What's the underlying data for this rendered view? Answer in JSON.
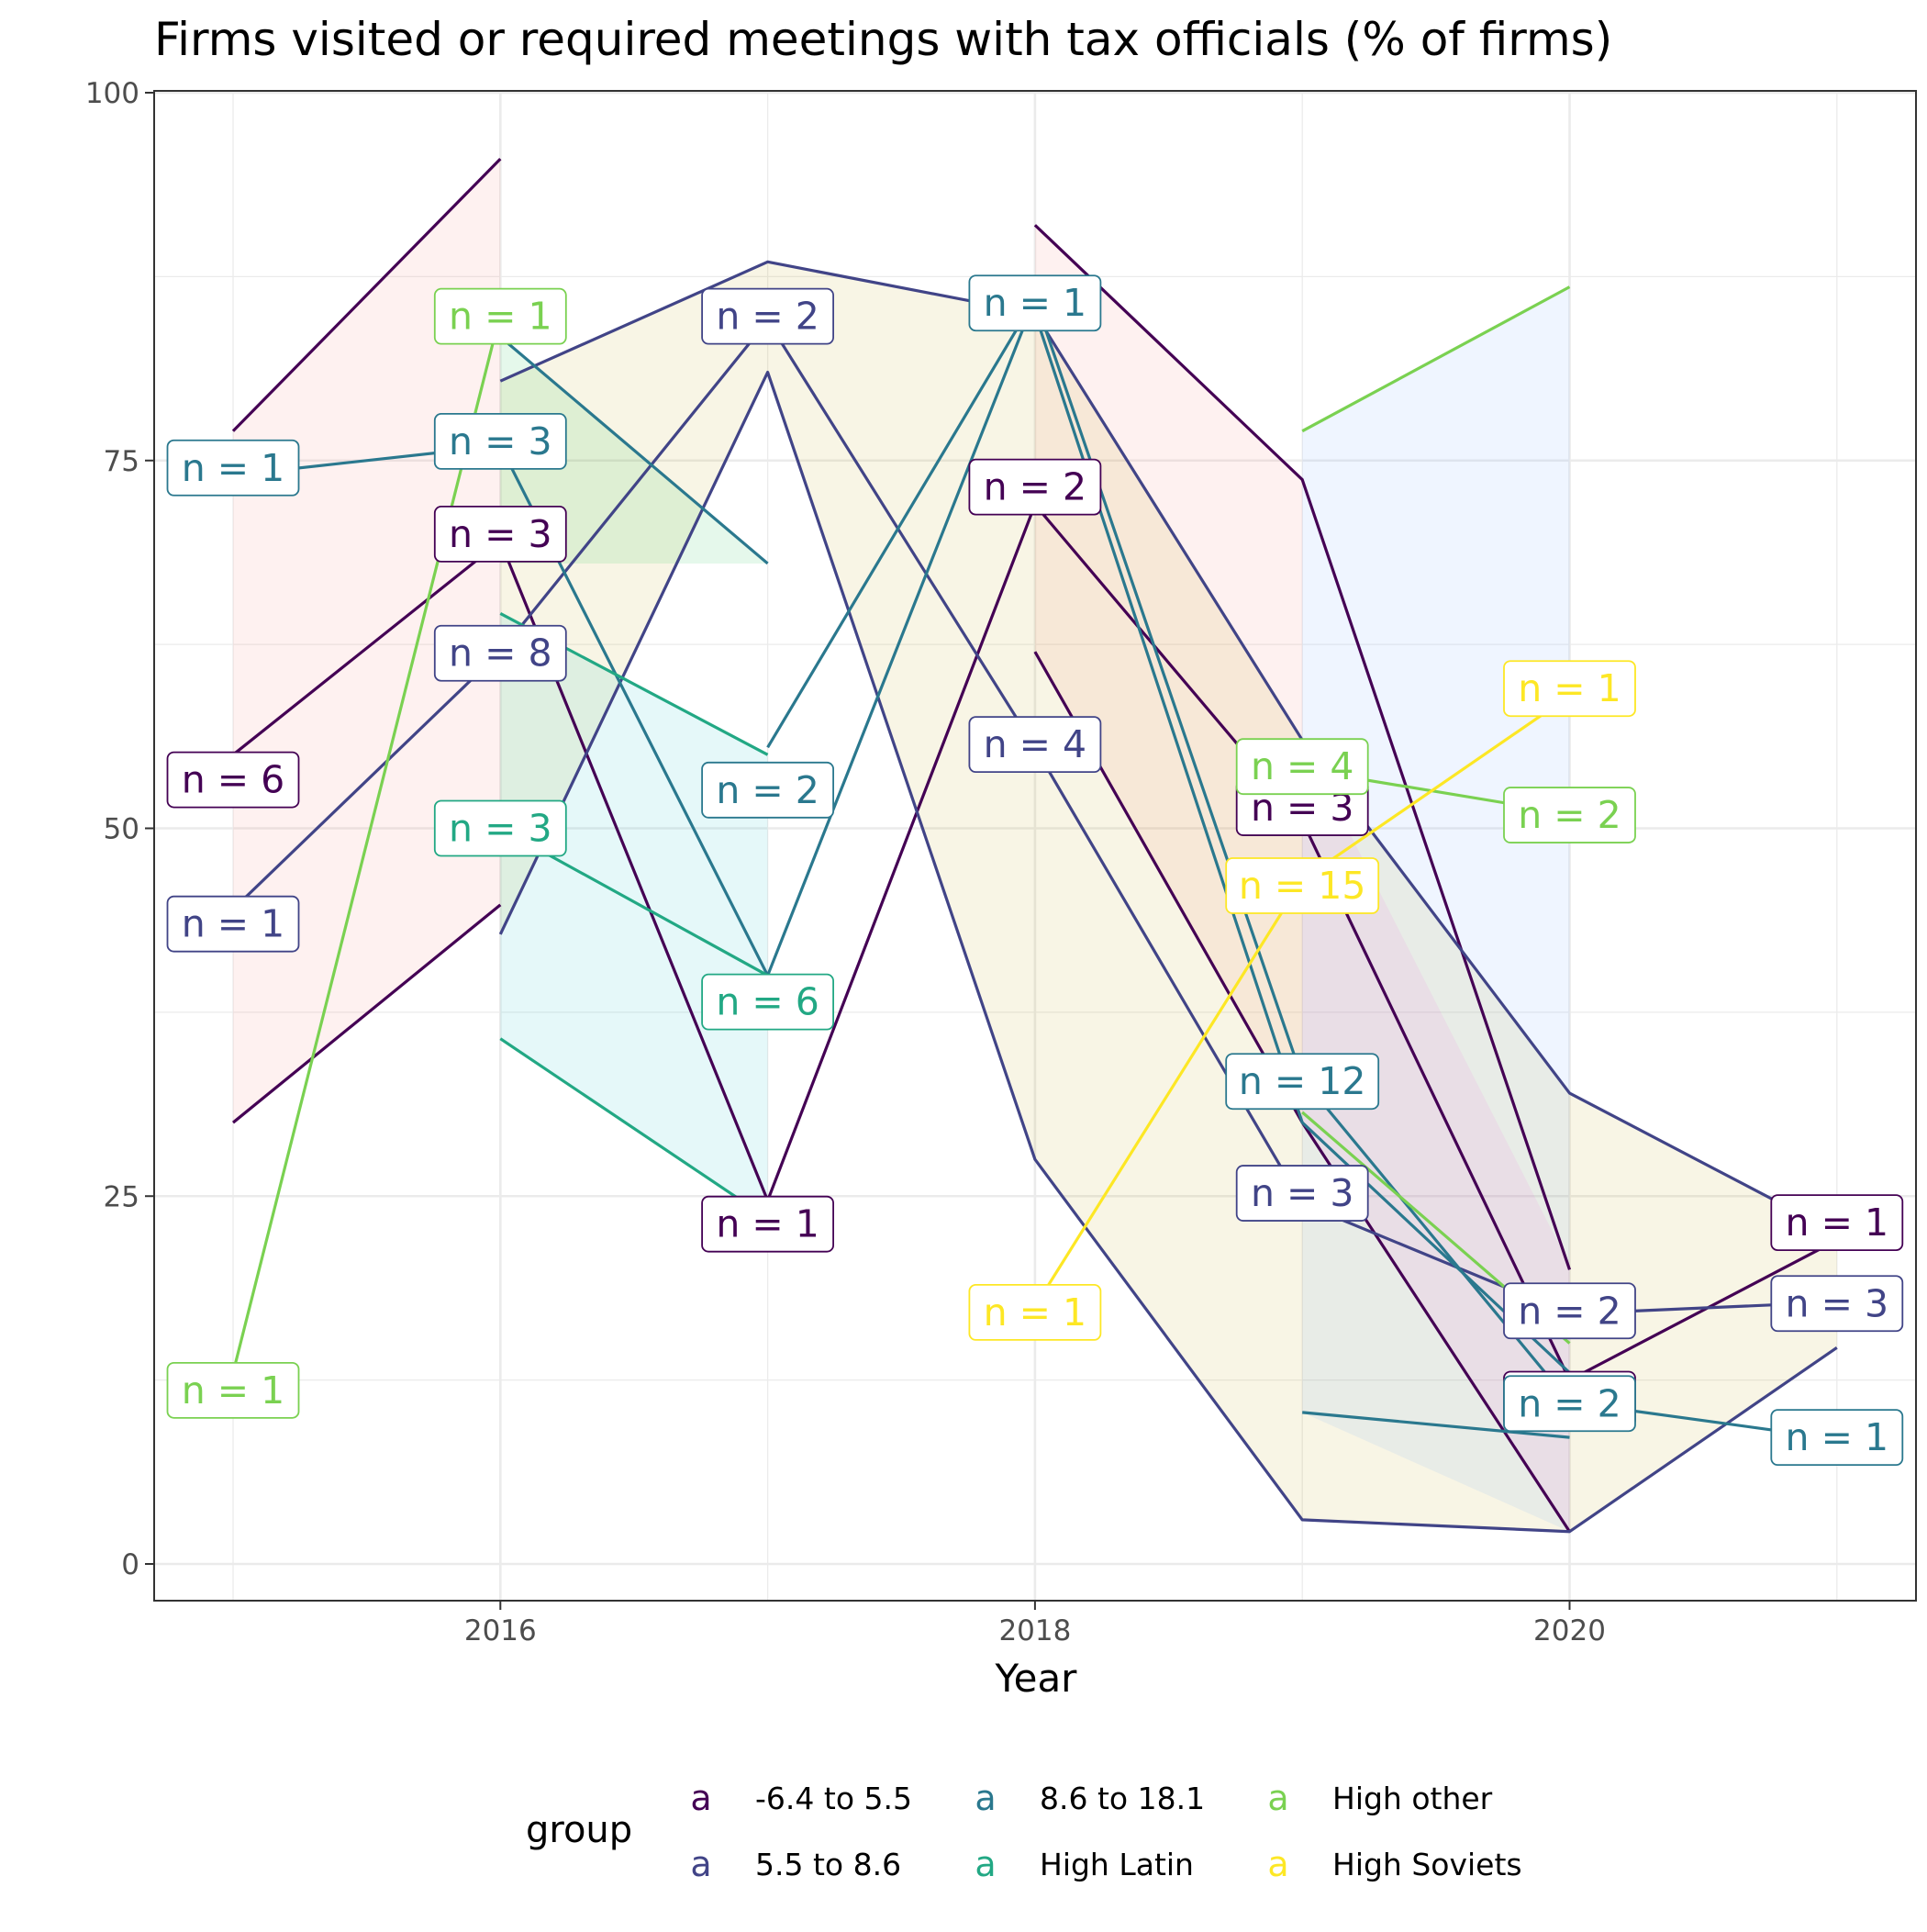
{
  "chart_data": {
    "type": "line",
    "title": "Firms visited or required meetings with tax officials (% of firms)",
    "xlabel": "Year",
    "ylabel": "",
    "xlim": [
      2014.7,
      2021.3
    ],
    "ylim": [
      -2.5,
      100
    ],
    "x_ticks": [
      2016,
      2018,
      2020
    ],
    "y_ticks": [
      0,
      25,
      50,
      75,
      100
    ],
    "grid": true,
    "legend": {
      "title": "group",
      "position": "bottom",
      "key_glyph": "a",
      "columns": [
        [
          "-6.4 to 5.5",
          "5.5 to 8.6"
        ],
        [
          "8.6 to 18.1",
          "High Latin"
        ],
        [
          "High other",
          "High Soviets"
        ]
      ]
    },
    "groups": [
      {
        "name": "-6.4 to 5.5",
        "color": "#440154"
      },
      {
        "name": "5.5 to 8.6",
        "color": "#414487"
      },
      {
        "name": "8.6 to 18.1",
        "color": "#2A788E"
      },
      {
        "name": "High Latin",
        "color": "#22A884"
      },
      {
        "name": "High other",
        "color": "#7AD151"
      },
      {
        "name": "High Soviets",
        "color": "#FDE725"
      }
    ],
    "bands": [
      {
        "group": 0,
        "fill": "#F8766D",
        "x": [
          2015,
          2016
        ],
        "low": [
          30,
          44.8
        ],
        "high": [
          77,
          95.5
        ]
      },
      {
        "group": 0,
        "fill": "#F8766D",
        "x": [
          2018,
          2019
        ],
        "low": [
          62,
          30
        ],
        "high": [
          91,
          73.7
        ]
      },
      {
        "group": 1,
        "fill": "#B79F00",
        "x": [
          2016,
          2017,
          2018,
          2019,
          2020,
          2021
        ],
        "low": [
          42.8,
          81,
          27.5,
          3,
          2.2,
          14.7
        ],
        "high": [
          80.4,
          88.5,
          85,
          56,
          32,
          22.5
        ]
      },
      {
        "group": 2,
        "fill": "#00BA38",
        "x": [
          2016,
          2017
        ],
        "low": [
          68,
          68
        ],
        "high": [
          83.4,
          68
        ]
      },
      {
        "group": 3,
        "fill": "#00BFC4",
        "x": [
          2016,
          2017
        ],
        "low": [
          35.7,
          23.5
        ],
        "high": [
          64.6,
          55
        ]
      },
      {
        "group": 4,
        "fill": "#619CFF",
        "x": [
          2019,
          2020
        ],
        "low": [
          10.3,
          2.2
        ],
        "high": [
          77,
          86.8
        ]
      },
      {
        "group": 5,
        "fill": "#F564E3",
        "x": [
          2019,
          2020
        ],
        "low": [
          30,
          2.2
        ],
        "high": [
          56,
          20.3
        ]
      }
    ],
    "series": [
      {
        "group": 0,
        "x": [
          2015,
          2016
        ],
        "y": [
          77,
          95.5
        ]
      },
      {
        "group": 0,
        "x": [
          2015,
          2016
        ],
        "y": [
          30,
          44.8
        ]
      },
      {
        "group": 0,
        "x": [
          2015,
          2016,
          2017,
          2018,
          2019,
          2020,
          2021
        ],
        "y": [
          55,
          69.5,
          24.7,
          72,
          50.5,
          12.5,
          22
        ]
      },
      {
        "group": 0,
        "x": [
          2018,
          2019,
          2020
        ],
        "y": [
          91,
          73.7,
          20
        ]
      },
      {
        "group": 0,
        "x": [
          2018,
          2019,
          2020
        ],
        "y": [
          62,
          30,
          2.2
        ]
      },
      {
        "group": 1,
        "x": [
          2015,
          2016,
          2017,
          2018,
          2019,
          2020,
          2021
        ],
        "y": [
          44.5,
          62,
          84.5,
          55.5,
          24.5,
          17,
          17.8
        ]
      },
      {
        "group": 1,
        "x": [
          2016,
          2017,
          2018,
          2019,
          2020,
          2021
        ],
        "y": [
          80.4,
          88.5,
          85,
          56,
          32,
          22.5
        ]
      },
      {
        "group": 1,
        "x": [
          2016,
          2017,
          2018,
          2019,
          2020,
          2021
        ],
        "y": [
          42.8,
          81,
          27.5,
          3,
          2.2,
          14.7
        ]
      },
      {
        "group": 2,
        "x": [
          2015,
          2016,
          2017,
          2018,
          2019,
          2020,
          2021
        ],
        "y": [
          74,
          76,
          40,
          86,
          33,
          11,
          8.5
        ]
      },
      {
        "group": 2,
        "x": [
          2016,
          2017
        ],
        "y": [
          83.4,
          68
        ]
      },
      {
        "group": 2,
        "x": [
          2017,
          2018
        ],
        "y": [
          55.5,
          86
        ]
      },
      {
        "group": 2,
        "x": [
          2018,
          2019,
          2020
        ],
        "y": [
          85,
          30,
          13
        ]
      },
      {
        "group": 2,
        "x": [
          2019,
          2020
        ],
        "y": [
          10.3,
          8.6
        ]
      },
      {
        "group": 3,
        "x": [
          2016,
          2017
        ],
        "y": [
          64.6,
          55
        ]
      },
      {
        "group": 3,
        "x": [
          2016,
          2017
        ],
        "y": [
          50,
          40
        ]
      },
      {
        "group": 3,
        "x": [
          2016,
          2017
        ],
        "y": [
          35.7,
          23.5
        ]
      },
      {
        "group": 4,
        "x": [
          2015,
          2016
        ],
        "y": [
          13,
          85
        ]
      },
      {
        "group": 4,
        "x": [
          2019,
          2020
        ],
        "y": [
          77,
          86.8
        ]
      },
      {
        "group": 4,
        "x": [
          2019,
          2020
        ],
        "y": [
          54,
          51
        ]
      },
      {
        "group": 4,
        "x": [
          2019,
          2020
        ],
        "y": [
          30.7,
          15
        ]
      },
      {
        "group": 5,
        "x": [
          2018,
          2019,
          2020
        ],
        "y": [
          17.5,
          46.5,
          59
        ]
      }
    ],
    "labels": [
      {
        "group": 4,
        "x": 2015,
        "y": 11.8,
        "text": "n = 1"
      },
      {
        "group": 2,
        "x": 2015,
        "y": 74.5,
        "text": "n = 1"
      },
      {
        "group": 0,
        "x": 2015,
        "y": 53.3,
        "text": "n = 6"
      },
      {
        "group": 1,
        "x": 2015,
        "y": 43.5,
        "text": "n = 1"
      },
      {
        "group": 4,
        "x": 2016,
        "y": 84.8,
        "text": "n = 1"
      },
      {
        "group": 2,
        "x": 2016,
        "y": 76.3,
        "text": "n = 3"
      },
      {
        "group": 0,
        "x": 2016,
        "y": 70.0,
        "text": "n = 3"
      },
      {
        "group": 1,
        "x": 2016,
        "y": 61.9,
        "text": "n = 8"
      },
      {
        "group": 3,
        "x": 2016,
        "y": 50.0,
        "text": "n = 3"
      },
      {
        "group": 1,
        "x": 2017,
        "y": 84.8,
        "text": "n = 2"
      },
      {
        "group": 2,
        "x": 2017,
        "y": 52.6,
        "text": "n = 2"
      },
      {
        "group": 3,
        "x": 2017,
        "y": 38.2,
        "text": "n = 6"
      },
      {
        "group": 0,
        "x": 2017,
        "y": 23.1,
        "text": "n = 1"
      },
      {
        "group": 2,
        "x": 2018,
        "y": 85.7,
        "text": "n = 1"
      },
      {
        "group": 0,
        "x": 2018,
        "y": 73.2,
        "text": "n = 2"
      },
      {
        "group": 1,
        "x": 2018,
        "y": 55.7,
        "text": "n = 4"
      },
      {
        "group": 5,
        "x": 2018,
        "y": 17.1,
        "text": "n = 1"
      },
      {
        "group": 0,
        "x": 2019,
        "y": 51.4,
        "text": "n = 3"
      },
      {
        "group": 4,
        "x": 2019,
        "y": 54.2,
        "text": "n = 4"
      },
      {
        "group": 5,
        "x": 2019,
        "y": 46.1,
        "text": "n = 15"
      },
      {
        "group": 2,
        "x": 2019,
        "y": 32.8,
        "text": "n = 12"
      },
      {
        "group": 1,
        "x": 2019,
        "y": 25.2,
        "text": "n = 3"
      },
      {
        "group": 5,
        "x": 2020,
        "y": 59.5,
        "text": "n = 1"
      },
      {
        "group": 4,
        "x": 2020,
        "y": 50.9,
        "text": "n = 2"
      },
      {
        "group": 1,
        "x": 2020,
        "y": 17.2,
        "text": "n = 2"
      },
      {
        "group": 0,
        "x": 2020,
        "y": 11.2,
        "text": "n = 1"
      },
      {
        "group": 2,
        "x": 2020,
        "y": 10.9,
        "text": "n = 2"
      },
      {
        "group": 0,
        "x": 2021,
        "y": 23.2,
        "text": "n = 1"
      },
      {
        "group": 1,
        "x": 2021,
        "y": 17.7,
        "text": "n = 3"
      },
      {
        "group": 2,
        "x": 2021,
        "y": 8.6,
        "text": "n = 1"
      }
    ]
  }
}
